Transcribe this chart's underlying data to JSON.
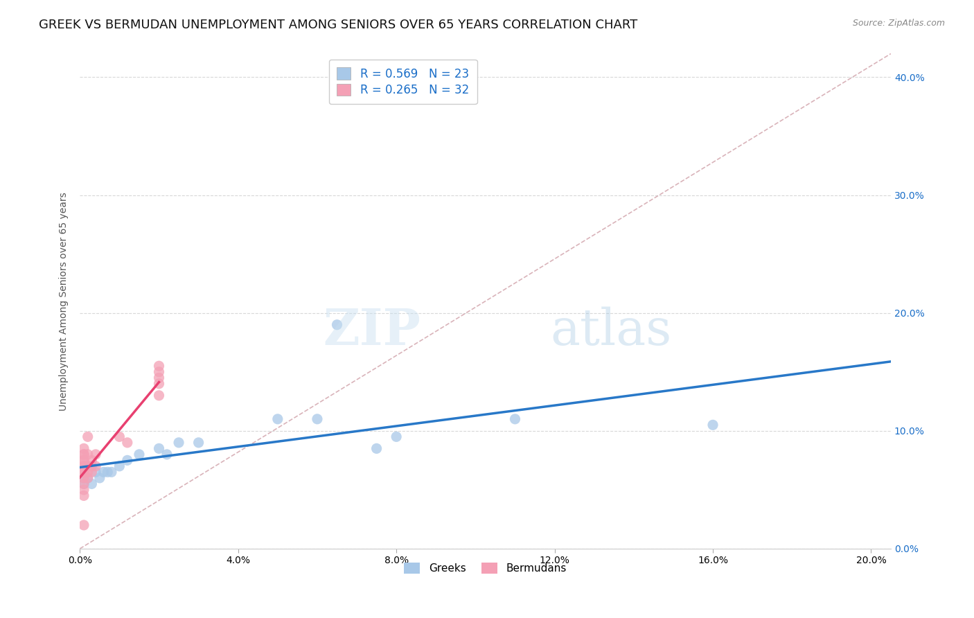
{
  "title": "GREEK VS BERMUDAN UNEMPLOYMENT AMONG SENIORS OVER 65 YEARS CORRELATION CHART",
  "source": "Source: ZipAtlas.com",
  "ylabel": "Unemployment Among Seniors over 65 years",
  "xlabel": "",
  "xlim": [
    0.0,
    0.205
  ],
  "ylim": [
    0.0,
    0.42
  ],
  "xticks": [
    0.0,
    0.04,
    0.08,
    0.12,
    0.16,
    0.2
  ],
  "yticks_left": [],
  "yticks_right": [
    0.0,
    0.1,
    0.2,
    0.3,
    0.4
  ],
  "greek_R": 0.569,
  "greek_N": 23,
  "bermudan_R": 0.265,
  "bermudan_N": 32,
  "greek_color": "#a8c8e8",
  "bermudan_color": "#f4a0b5",
  "greek_line_color": "#2878c8",
  "bermudan_line_color": "#e84070",
  "diag_line_color": "#d0a0a8",
  "greek_x": [
    0.001,
    0.001,
    0.002,
    0.003,
    0.004,
    0.005,
    0.006,
    0.007,
    0.008,
    0.01,
    0.012,
    0.015,
    0.02,
    0.022,
    0.025,
    0.03,
    0.05,
    0.06,
    0.065,
    0.075,
    0.08,
    0.11,
    0.16
  ],
  "greek_y": [
    0.055,
    0.06,
    0.06,
    0.055,
    0.065,
    0.06,
    0.065,
    0.065,
    0.065,
    0.07,
    0.075,
    0.08,
    0.085,
    0.08,
    0.09,
    0.09,
    0.11,
    0.11,
    0.19,
    0.085,
    0.095,
    0.11,
    0.105
  ],
  "bermudan_x": [
    0.001,
    0.001,
    0.001,
    0.001,
    0.001,
    0.001,
    0.001,
    0.001,
    0.001,
    0.001,
    0.001,
    0.001,
    0.001,
    0.001,
    0.002,
    0.002,
    0.002,
    0.002,
    0.002,
    0.003,
    0.003,
    0.003,
    0.004,
    0.004,
    0.01,
    0.012,
    0.02,
    0.02,
    0.02,
    0.02,
    0.02,
    0.001
  ],
  "bermudan_y": [
    0.045,
    0.05,
    0.055,
    0.06,
    0.065,
    0.065,
    0.065,
    0.07,
    0.07,
    0.075,
    0.075,
    0.08,
    0.08,
    0.085,
    0.06,
    0.065,
    0.07,
    0.08,
    0.095,
    0.065,
    0.07,
    0.075,
    0.07,
    0.08,
    0.095,
    0.09,
    0.13,
    0.14,
    0.145,
    0.15,
    0.155,
    0.02
  ],
  "background_color": "#ffffff",
  "watermark_zip": "ZIP",
  "watermark_atlas": "atlas",
  "marker_size": 120,
  "title_fontsize": 13,
  "axis_label_fontsize": 10,
  "legend_fontsize": 12,
  "tick_fontsize": 10
}
